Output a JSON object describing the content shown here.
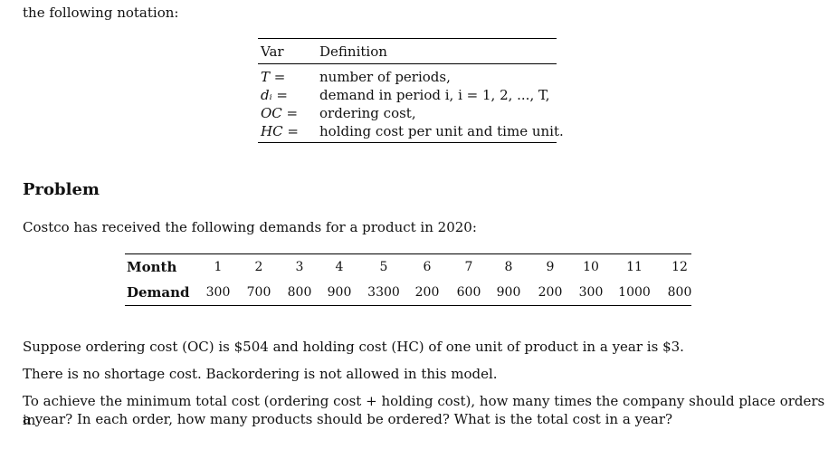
{
  "intro": "the following notation:",
  "notation": {
    "header_var": "Var",
    "header_def": "Definition",
    "rows": [
      {
        "var": "T =",
        "def": "number of periods,"
      },
      {
        "var": "dᵢ =",
        "def": "demand in period i, i = 1, 2, ..., T,"
      },
      {
        "var": "OC =",
        "def": "ordering cost,"
      },
      {
        "var": "HC =",
        "def": "holding cost per unit and time unit."
      }
    ]
  },
  "problem": {
    "title": "Problem",
    "intro": "Costco has received the following demands for a product in 2020:"
  },
  "demand_table": {
    "month_label": "Month",
    "demand_label": "Demand",
    "months": [
      "1",
      "2",
      "3",
      "4",
      "5",
      "6",
      "7",
      "8",
      "9",
      "10",
      "11",
      "12"
    ],
    "demands": [
      "300",
      "700",
      "800",
      "900",
      "3300",
      "200",
      "600",
      "900",
      "200",
      "300",
      "1000",
      "800"
    ]
  },
  "paragraphs": {
    "p1": "Suppose ordering cost (OC) is $504 and holding cost (HC) of one unit of product in a year is $3.",
    "p2": "There is no shortage cost. Backordering is not allowed in this model.",
    "p3_line1": "To achieve the minimum total cost (ordering cost + holding cost), how many times the company should place orders in",
    "p3_line2": "a year? In each order, how many products should be ordered? What is the total cost in a year?"
  }
}
